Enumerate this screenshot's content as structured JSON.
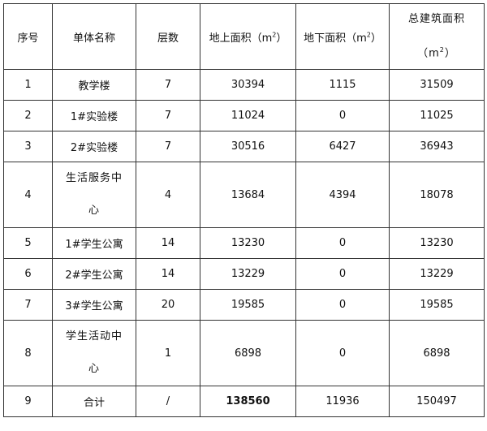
{
  "headers": {
    "no": "序号",
    "name": "单体名称",
    "floors": "层数",
    "above": {
      "text": "地上面积（",
      "unit": "m",
      "exp": "2",
      "close": "）"
    },
    "below": {
      "text": "地下面积（",
      "unit": "m",
      "exp": "2",
      "close": "）"
    },
    "total": {
      "text": "总建筑面积",
      "open": "（",
      "unit": "m",
      "exp": "2",
      "close": "）"
    }
  },
  "rows": [
    {
      "no": "1",
      "name": "教学楼",
      "floors": "7",
      "above": "30394",
      "below": "1115",
      "total": "31509"
    },
    {
      "no": "2",
      "name": "1#实验楼",
      "floors": "7",
      "above": "11024",
      "below": "0",
      "total": "11025"
    },
    {
      "no": "3",
      "name": "2#实验楼",
      "floors": "7",
      "above": "30516",
      "below": "6427",
      "total": "36943"
    },
    {
      "no": "4",
      "name": "生活服务中心",
      "floors": "4",
      "above": "13684",
      "below": "4394",
      "total": "18078"
    },
    {
      "no": "5",
      "name": "1#学生公寓",
      "floors": "14",
      "above": "13230",
      "below": "0",
      "total": "13230"
    },
    {
      "no": "6",
      "name": "2#学生公寓",
      "floors": "14",
      "above": "13229",
      "below": "0",
      "total": "13229"
    },
    {
      "no": "7",
      "name": "3#学生公寓",
      "floors": "20",
      "above": "19585",
      "below": "0",
      "total": "19585"
    },
    {
      "no": "8",
      "name": "学生活动中心",
      "floors": "1",
      "above": "6898",
      "below": "0",
      "total": "6898"
    },
    {
      "no": "9",
      "name": "合计",
      "floors": "/",
      "above": "138560",
      "below": "11936",
      "total": "150497"
    }
  ]
}
